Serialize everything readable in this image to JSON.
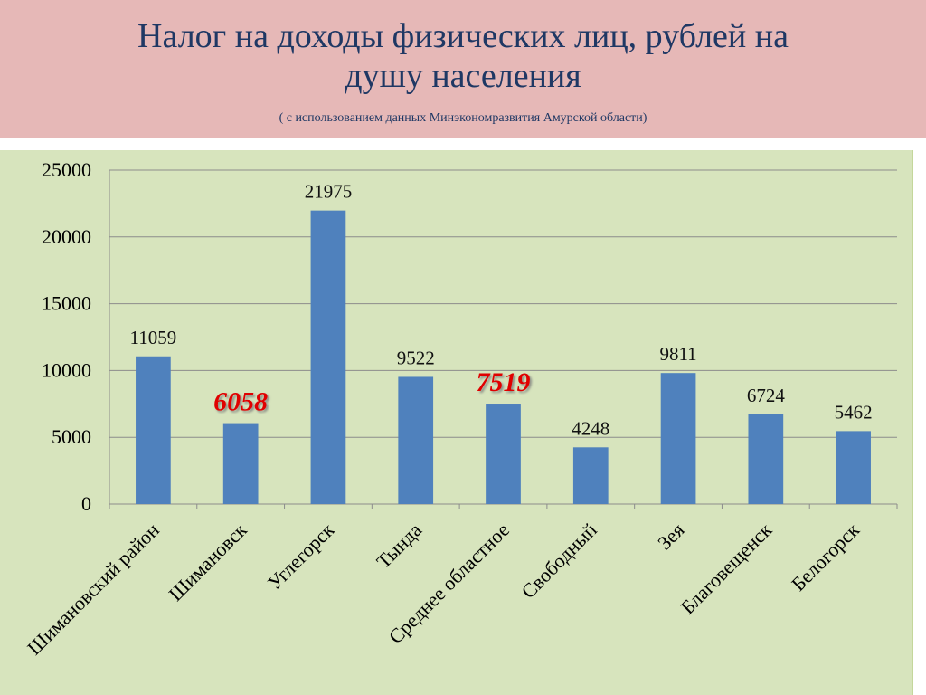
{
  "header": {
    "title_line1": "Налог  на доходы физических лиц,  рублей на",
    "title_line2": "душу населения",
    "subtitle": "( с использованием данных Минэкономразвития Амурской области)"
  },
  "colors": {
    "header_bg": "#e6b8b7",
    "plot_bg": "#d7e4bd",
    "bar": "#4f81bd",
    "highlight_label": "#e00000"
  },
  "chart_data": {
    "type": "bar",
    "title": "Налог  на доходы физических лиц,  рублей на душу населения",
    "xlabel": "",
    "ylabel": "",
    "ylim": [
      0,
      25000
    ],
    "yticks": [
      0,
      5000,
      10000,
      15000,
      20000,
      25000
    ],
    "grid": true,
    "categories": [
      "Шимановский район",
      "Шимановск",
      "Углегорск",
      "Тында",
      "Среднее областное",
      "Свободный",
      "Зея",
      "Благовещенск",
      "Белогорск"
    ],
    "values": [
      11059,
      6058,
      21975,
      9522,
      7519,
      4248,
      9811,
      6724,
      5462
    ],
    "highlighted": [
      1,
      4
    ]
  }
}
